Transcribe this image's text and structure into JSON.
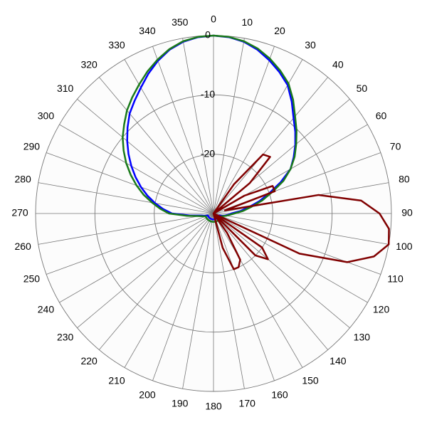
{
  "chart_data": {
    "type": "polar",
    "theta": [
      0,
      5,
      10,
      15,
      20,
      25,
      30,
      35,
      40,
      45,
      50,
      55,
      60,
      65,
      70,
      75,
      80,
      85,
      90,
      95,
      100,
      105,
      110,
      115,
      120,
      125,
      130,
      135,
      140,
      145,
      150,
      155,
      160,
      165,
      170,
      175,
      180,
      185,
      190,
      195,
      200,
      205,
      210,
      215,
      220,
      225,
      230,
      235,
      240,
      245,
      250,
      255,
      260,
      265,
      270,
      275,
      280,
      285,
      290,
      295,
      300,
      305,
      310,
      315,
      320,
      325,
      330,
      335,
      340,
      345,
      350,
      355
    ],
    "rlim": [
      -30,
      0
    ],
    "rticks": [
      -20,
      -10,
      0
    ],
    "thetaticks": [
      0,
      10,
      20,
      30,
      40,
      50,
      60,
      70,
      80,
      90,
      100,
      110,
      120,
      130,
      140,
      150,
      160,
      170,
      180,
      190,
      200,
      210,
      220,
      230,
      240,
      250,
      260,
      270,
      280,
      290,
      300,
      310,
      320,
      330,
      340,
      350
    ],
    "direction": "clockwise",
    "zero_location": "N",
    "grid": true,
    "series": [
      {
        "color": "#0000ff",
        "values": [
          0,
          -0.15,
          -0.6,
          -1.4,
          -2.5,
          -3.7,
          -5,
          -7,
          -9,
          -10.5,
          -12,
          -13.5,
          -15,
          -17.5,
          -20,
          -22,
          -24,
          -25.5,
          -27,
          -27.5,
          -28,
          -28.5,
          -29,
          -29,
          -29,
          -29,
          -29,
          -29,
          -29,
          -29,
          -29,
          -29,
          -29,
          -29,
          -29,
          -29,
          -29,
          -29,
          -29,
          -29,
          -29,
          -29,
          -29,
          -29,
          -29,
          -29,
          -29,
          -29,
          -29,
          -29,
          -29,
          -28.5,
          -28,
          -26,
          -23,
          -21.5,
          -20,
          -18.5,
          -17,
          -15.5,
          -14,
          -12.5,
          -11,
          -9.5,
          -8,
          -6.8,
          -5.5,
          -4,
          -2.6,
          -1.4,
          -0.6,
          -0.15
        ]
      },
      {
        "color": "#1a7a1a",
        "values": [
          0,
          -0.1,
          -0.5,
          -1.2,
          -2.2,
          -3.4,
          -4.7,
          -6.6,
          -8.6,
          -10.2,
          -11.8,
          -13.3,
          -15,
          -17,
          -19.5,
          -21.5,
          -23.5,
          -25,
          -26.5,
          -27.3,
          -27.8,
          -28.3,
          -28.6,
          -28.6,
          -28.6,
          -28.6,
          -28.6,
          -28.6,
          -28.6,
          -28.6,
          -28.6,
          -28.6,
          -28.6,
          -28.6,
          -28.6,
          -28.6,
          -28.6,
          -28.6,
          -28.6,
          -28.6,
          -28.6,
          -28.6,
          -28.6,
          -28.6,
          -28.6,
          -28.6,
          -28.6,
          -28.6,
          -28.6,
          -28.6,
          -28.6,
          -28.2,
          -27.5,
          -25.5,
          -22.5,
          -21,
          -19.5,
          -17.8,
          -16.2,
          -14.6,
          -13,
          -11.5,
          -10,
          -8.7,
          -7.3,
          -6.1,
          -4.9,
          -3.6,
          -2.4,
          -1.3,
          -0.5,
          -0.1
        ]
      },
      {
        "color": "#800000",
        "values": [
          -30,
          -30,
          -30,
          -30,
          -30,
          -30,
          -30,
          -24,
          -17,
          -16.5,
          -22,
          -30,
          -24,
          -19,
          -19,
          -28,
          -12,
          -5,
          -2,
          -0.3,
          0,
          -2,
          -6,
          -14,
          -30,
          -20,
          -18,
          -20,
          -30,
          -26,
          -21,
          -20,
          -20,
          -24,
          -30,
          -30,
          -30,
          -30,
          -30,
          -30,
          -30,
          -30,
          -30,
          -30,
          -30,
          -30,
          -30,
          -30,
          -30,
          -30,
          -30,
          -30,
          -30,
          -30,
          -30,
          -30,
          -30,
          -30,
          -30,
          -30,
          -30,
          -30,
          -30,
          -30,
          -30,
          -30,
          -30,
          -30,
          -30,
          -30,
          -30,
          -30
        ]
      }
    ]
  }
}
